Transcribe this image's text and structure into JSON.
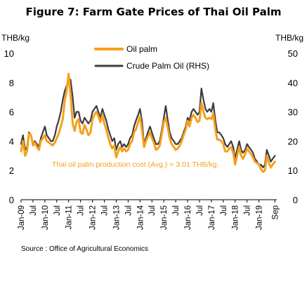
{
  "title": "Figure 7: Farm Gate Prices of Thai Oil Palm",
  "source": "Source : Office of Agricultural Economics",
  "chart_data": {
    "type": "line",
    "title": "Figure 7: Farm Gate Prices of Thai Oil Palm",
    "y_left": {
      "label": "THB/kg",
      "range": [
        0,
        10
      ],
      "ticks": [
        "0",
        "2",
        "4",
        "6",
        "8",
        "10"
      ]
    },
    "y_right": {
      "label": "THB/kg",
      "range": [
        0,
        50
      ],
      "ticks": [
        "0",
        "10",
        "20",
        "30",
        "40",
        "50"
      ]
    },
    "x_range": [
      2009.0,
      2019.75
    ],
    "x_ticks": [
      {
        "x": 2009.0,
        "label": "Jan-09"
      },
      {
        "x": 2009.5,
        "label": "Jul"
      },
      {
        "x": 2010.0,
        "label": "Jan-10"
      },
      {
        "x": 2010.5,
        "label": "Jul"
      },
      {
        "x": 2011.0,
        "label": "Jan-11"
      },
      {
        "x": 2011.5,
        "label": "Jul"
      },
      {
        "x": 2012.0,
        "label": "Jan-12"
      },
      {
        "x": 2012.5,
        "label": "Jul"
      },
      {
        "x": 2013.0,
        "label": "Jan-13"
      },
      {
        "x": 2013.5,
        "label": "Jul"
      },
      {
        "x": 2014.0,
        "label": "Jan-14"
      },
      {
        "x": 2014.5,
        "label": "Jul"
      },
      {
        "x": 2015.0,
        "label": "Jan-15"
      },
      {
        "x": 2015.5,
        "label": "Jul"
      },
      {
        "x": 2016.0,
        "label": "Jan-16"
      },
      {
        "x": 2016.5,
        "label": "Jul"
      },
      {
        "x": 2017.0,
        "label": "Jan-17"
      },
      {
        "x": 2017.5,
        "label": "Jul"
      },
      {
        "x": 2018.0,
        "label": "Jan-18"
      },
      {
        "x": 2018.5,
        "label": "Jul"
      },
      {
        "x": 2019.0,
        "label": "Jan-19"
      },
      {
        "x": 2019.67,
        "label": "Sep"
      }
    ],
    "grid": false,
    "legend": "top-center",
    "annotation": "Thai oil palm production cost (Avg.) = 3.01 THB/kg.",
    "series": [
      {
        "name": "Oil palm",
        "axis": "left",
        "color": "#F5A01A",
        "points": [
          [
            2009.0,
            3.3
          ],
          [
            2009.08,
            4.0
          ],
          [
            2009.17,
            3.0
          ],
          [
            2009.25,
            3.3
          ],
          [
            2009.33,
            4.5
          ],
          [
            2009.42,
            4.4
          ],
          [
            2009.5,
            3.7
          ],
          [
            2009.58,
            3.9
          ],
          [
            2009.67,
            3.6
          ],
          [
            2009.75,
            3.4
          ],
          [
            2009.83,
            4.0
          ],
          [
            2010.0,
            4.4
          ],
          [
            2010.08,
            4.0
          ],
          [
            2010.17,
            3.9
          ],
          [
            2010.25,
            3.8
          ],
          [
            2010.33,
            3.7
          ],
          [
            2010.42,
            3.9
          ],
          [
            2010.5,
            4.2
          ],
          [
            2010.58,
            4.5
          ],
          [
            2010.67,
            5.0
          ],
          [
            2010.75,
            5.5
          ],
          [
            2010.83,
            6.7
          ],
          [
            2010.92,
            7.5
          ],
          [
            2011.0,
            8.6
          ],
          [
            2011.08,
            7.2
          ],
          [
            2011.17,
            5.2
          ],
          [
            2011.25,
            4.7
          ],
          [
            2011.33,
            5.3
          ],
          [
            2011.42,
            5.5
          ],
          [
            2011.5,
            4.6
          ],
          [
            2011.58,
            4.5
          ],
          [
            2011.67,
            5.1
          ],
          [
            2011.75,
            4.8
          ],
          [
            2011.83,
            4.4
          ],
          [
            2011.92,
            4.6
          ],
          [
            2012.0,
            5.5
          ],
          [
            2012.08,
            5.8
          ],
          [
            2012.17,
            6.0
          ],
          [
            2012.25,
            5.7
          ],
          [
            2012.33,
            5.3
          ],
          [
            2012.42,
            5.8
          ],
          [
            2012.5,
            5.2
          ],
          [
            2012.58,
            4.8
          ],
          [
            2012.67,
            4.2
          ],
          [
            2012.75,
            3.8
          ],
          [
            2012.83,
            3.5
          ],
          [
            2012.92,
            3.7
          ],
          [
            2013.0,
            2.9
          ],
          [
            2013.08,
            3.3
          ],
          [
            2013.17,
            3.6
          ],
          [
            2013.25,
            3.3
          ],
          [
            2013.33,
            3.5
          ],
          [
            2013.42,
            3.3
          ],
          [
            2013.5,
            3.4
          ],
          [
            2013.58,
            3.8
          ],
          [
            2013.67,
            4.0
          ],
          [
            2013.75,
            4.6
          ],
          [
            2013.83,
            4.8
          ],
          [
            2013.92,
            5.3
          ],
          [
            2014.0,
            5.7
          ],
          [
            2014.08,
            4.8
          ],
          [
            2014.17,
            3.6
          ],
          [
            2014.25,
            4.0
          ],
          [
            2014.33,
            4.3
          ],
          [
            2014.42,
            4.6
          ],
          [
            2014.5,
            4.2
          ],
          [
            2014.58,
            3.9
          ],
          [
            2014.67,
            3.4
          ],
          [
            2014.75,
            3.5
          ],
          [
            2014.83,
            3.7
          ],
          [
            2014.92,
            4.5
          ],
          [
            2015.0,
            5.3
          ],
          [
            2015.08,
            5.6
          ],
          [
            2015.17,
            4.9
          ],
          [
            2015.25,
            4.2
          ],
          [
            2015.33,
            3.8
          ],
          [
            2015.42,
            3.6
          ],
          [
            2015.5,
            3.4
          ],
          [
            2015.58,
            3.5
          ],
          [
            2015.67,
            3.7
          ],
          [
            2015.75,
            4.0
          ],
          [
            2015.83,
            4.4
          ],
          [
            2015.92,
            4.8
          ],
          [
            2016.0,
            5.4
          ],
          [
            2016.08,
            5.0
          ],
          [
            2016.17,
            5.6
          ],
          [
            2016.25,
            5.8
          ],
          [
            2016.33,
            5.6
          ],
          [
            2016.42,
            5.3
          ],
          [
            2016.5,
            5.4
          ],
          [
            2016.58,
            6.6
          ],
          [
            2016.67,
            6.0
          ],
          [
            2016.75,
            5.6
          ],
          [
            2016.83,
            5.5
          ],
          [
            2016.92,
            5.6
          ],
          [
            2017.0,
            5.5
          ],
          [
            2017.08,
            5.9
          ],
          [
            2017.17,
            4.8
          ],
          [
            2017.25,
            4.1
          ],
          [
            2017.33,
            4.1
          ],
          [
            2017.42,
            4.0
          ],
          [
            2017.5,
            3.8
          ],
          [
            2017.58,
            3.3
          ],
          [
            2017.67,
            3.3
          ],
          [
            2017.75,
            3.5
          ],
          [
            2017.83,
            3.6
          ],
          [
            2017.92,
            3.2
          ],
          [
            2018.0,
            2.4
          ],
          [
            2018.08,
            3.0
          ],
          [
            2018.17,
            3.6
          ],
          [
            2018.25,
            3.0
          ],
          [
            2018.33,
            2.8
          ],
          [
            2018.42,
            3.1
          ],
          [
            2018.5,
            3.5
          ],
          [
            2018.58,
            3.3
          ],
          [
            2018.67,
            3.1
          ],
          [
            2018.75,
            2.9
          ],
          [
            2018.83,
            2.6
          ],
          [
            2018.92,
            2.5
          ],
          [
            2019.0,
            2.4
          ],
          [
            2019.08,
            2.1
          ],
          [
            2019.17,
            1.9
          ],
          [
            2019.25,
            2.0
          ],
          [
            2019.33,
            3.0
          ],
          [
            2019.42,
            2.5
          ],
          [
            2019.5,
            2.2
          ],
          [
            2019.58,
            2.4
          ],
          [
            2019.67,
            2.6
          ]
        ]
      },
      {
        "name": "Crude Palm Oil (RHS)",
        "axis": "right",
        "color": "#3F3B3C",
        "points": [
          [
            2009.0,
            19
          ],
          [
            2009.08,
            22
          ],
          [
            2009.17,
            17
          ],
          [
            2009.25,
            18
          ],
          [
            2009.33,
            23
          ],
          [
            2009.42,
            22
          ],
          [
            2009.5,
            19
          ],
          [
            2009.58,
            20
          ],
          [
            2009.67,
            19
          ],
          [
            2009.75,
            18
          ],
          [
            2009.83,
            21
          ],
          [
            2010.0,
            25
          ],
          [
            2010.08,
            22
          ],
          [
            2010.17,
            21
          ],
          [
            2010.25,
            20
          ],
          [
            2010.33,
            20
          ],
          [
            2010.42,
            22
          ],
          [
            2010.5,
            25
          ],
          [
            2010.58,
            27
          ],
          [
            2010.67,
            30
          ],
          [
            2010.75,
            34
          ],
          [
            2010.83,
            37
          ],
          [
            2010.92,
            39
          ],
          [
            2011.0,
            40
          ],
          [
            2011.08,
            41
          ],
          [
            2011.17,
            35
          ],
          [
            2011.25,
            28
          ],
          [
            2011.33,
            30
          ],
          [
            2011.42,
            30
          ],
          [
            2011.5,
            27
          ],
          [
            2011.58,
            26
          ],
          [
            2011.67,
            28
          ],
          [
            2011.75,
            27
          ],
          [
            2011.83,
            26
          ],
          [
            2011.92,
            27
          ],
          [
            2012.0,
            30
          ],
          [
            2012.08,
            31
          ],
          [
            2012.17,
            32
          ],
          [
            2012.25,
            30
          ],
          [
            2012.33,
            28
          ],
          [
            2012.42,
            31
          ],
          [
            2012.5,
            29
          ],
          [
            2012.58,
            27
          ],
          [
            2012.67,
            24
          ],
          [
            2012.75,
            22
          ],
          [
            2012.83,
            20
          ],
          [
            2012.92,
            21
          ],
          [
            2013.0,
            17
          ],
          [
            2013.08,
            19
          ],
          [
            2013.17,
            20
          ],
          [
            2013.25,
            18
          ],
          [
            2013.33,
            19
          ],
          [
            2013.42,
            18
          ],
          [
            2013.5,
            19
          ],
          [
            2013.58,
            21
          ],
          [
            2013.67,
            22
          ],
          [
            2013.75,
            25
          ],
          [
            2013.83,
            27
          ],
          [
            2013.92,
            29
          ],
          [
            2014.0,
            31
          ],
          [
            2014.08,
            27
          ],
          [
            2014.17,
            19
          ],
          [
            2014.25,
            21
          ],
          [
            2014.33,
            23
          ],
          [
            2014.42,
            25
          ],
          [
            2014.5,
            23
          ],
          [
            2014.58,
            21
          ],
          [
            2014.67,
            19
          ],
          [
            2014.75,
            19
          ],
          [
            2014.83,
            20
          ],
          [
            2014.92,
            24
          ],
          [
            2015.0,
            28
          ],
          [
            2015.08,
            32
          ],
          [
            2015.17,
            27
          ],
          [
            2015.25,
            23
          ],
          [
            2015.33,
            21
          ],
          [
            2015.42,
            20
          ],
          [
            2015.5,
            19
          ],
          [
            2015.58,
            19
          ],
          [
            2015.67,
            20
          ],
          [
            2015.75,
            21
          ],
          [
            2015.83,
            23
          ],
          [
            2015.92,
            25
          ],
          [
            2016.0,
            28
          ],
          [
            2016.08,
            27
          ],
          [
            2016.17,
            30
          ],
          [
            2016.25,
            31
          ],
          [
            2016.33,
            30
          ],
          [
            2016.42,
            29
          ],
          [
            2016.5,
            30
          ],
          [
            2016.58,
            38
          ],
          [
            2016.67,
            34
          ],
          [
            2016.75,
            31
          ],
          [
            2016.83,
            30
          ],
          [
            2016.92,
            31
          ],
          [
            2017.0,
            30
          ],
          [
            2017.08,
            33
          ],
          [
            2017.17,
            27
          ],
          [
            2017.25,
            23
          ],
          [
            2017.33,
            23
          ],
          [
            2017.42,
            22
          ],
          [
            2017.5,
            21
          ],
          [
            2017.58,
            19
          ],
          [
            2017.67,
            18
          ],
          [
            2017.75,
            19
          ],
          [
            2017.83,
            20
          ],
          [
            2017.92,
            18
          ],
          [
            2018.0,
            14
          ],
          [
            2018.08,
            17
          ],
          [
            2018.17,
            20
          ],
          [
            2018.25,
            17
          ],
          [
            2018.33,
            16
          ],
          [
            2018.42,
            17
          ],
          [
            2018.5,
            19
          ],
          [
            2018.58,
            18
          ],
          [
            2018.67,
            17
          ],
          [
            2018.75,
            16
          ],
          [
            2018.83,
            14
          ],
          [
            2018.92,
            13
          ],
          [
            2019.0,
            12
          ],
          [
            2019.08,
            12
          ],
          [
            2019.17,
            11
          ],
          [
            2019.25,
            12
          ],
          [
            2019.33,
            17
          ],
          [
            2019.42,
            15
          ],
          [
            2019.5,
            13
          ],
          [
            2019.58,
            14
          ],
          [
            2019.67,
            15
          ]
        ]
      }
    ]
  }
}
